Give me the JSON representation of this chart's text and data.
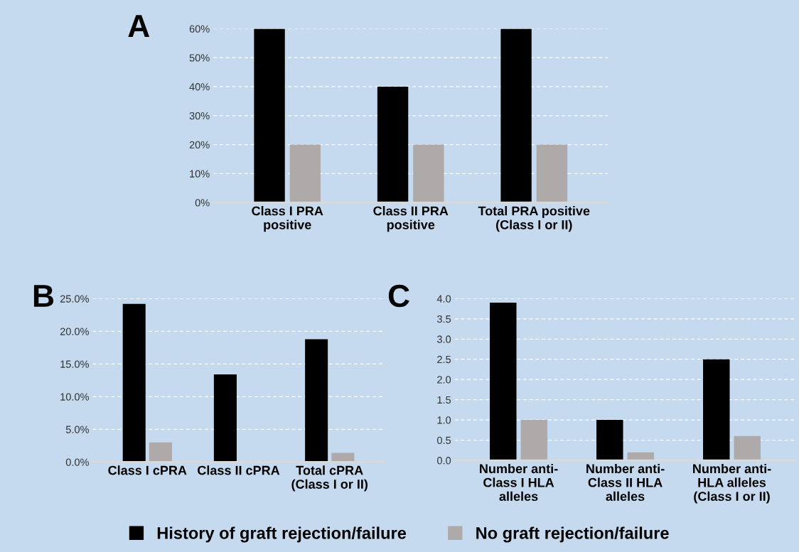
{
  "chart_data": [
    {
      "type": "bar",
      "title": "A",
      "categories": [
        "Class I PRA\npositive",
        "Class II PRA\npositive",
        "Total PRA positive\n(Class I or II)"
      ],
      "series": [
        {
          "name": "History of graft rejection/failure",
          "color": "#000000",
          "values": [
            60,
            40,
            60
          ]
        },
        {
          "name": "No graft rejection/failure",
          "color": "#aeaaaa",
          "values": [
            20,
            20,
            20
          ]
        }
      ],
      "ylim": [
        0,
        60
      ],
      "yticks": [
        {
          "value": 0,
          "label": "0%"
        },
        {
          "value": 10,
          "label": "10%"
        },
        {
          "value": 20,
          "label": "20%"
        },
        {
          "value": 30,
          "label": "30%"
        },
        {
          "value": 40,
          "label": "40%"
        },
        {
          "value": 50,
          "label": "50%"
        },
        {
          "value": 60,
          "label": "60%"
        }
      ],
      "grid": "y",
      "legend": "bottom"
    },
    {
      "type": "bar",
      "title": "B",
      "categories": [
        "Class I cPRA",
        "Class II cPRA",
        "Total cPRA\n(Class I or II)"
      ],
      "series": [
        {
          "color": "#000000",
          "values": [
            24.2,
            13.4,
            18.8
          ]
        },
        {
          "color": "#aeaaaa",
          "values": [
            3.0,
            0,
            1.4
          ]
        }
      ],
      "ylim": [
        0,
        25
      ],
      "yticks": [
        {
          "value": 0,
          "label": "0.0%"
        },
        {
          "value": 5,
          "label": "5.0%"
        },
        {
          "value": 10,
          "label": "10.0%"
        },
        {
          "value": 15,
          "label": "15.0%"
        },
        {
          "value": 20,
          "label": "20.0%"
        },
        {
          "value": 25,
          "label": "25.0%"
        }
      ],
      "grid": "y"
    },
    {
      "type": "bar",
      "title": "C",
      "categories": [
        "Number anti-\nClass I HLA\nalleles",
        "Number anti-\nClass II HLA\nalleles",
        "Number anti-\nHLA alleles\n(Class I or II)"
      ],
      "series": [
        {
          "color": "#000000",
          "values": [
            3.9,
            1.0,
            2.5
          ]
        },
        {
          "color": "#aeaaaa",
          "values": [
            1.0,
            0.2,
            0.6
          ]
        }
      ],
      "ylim": [
        0,
        4
      ],
      "yticks": [
        {
          "value": 0,
          "label": "0.0"
        },
        {
          "value": 0.5,
          "label": "0.5"
        },
        {
          "value": 1,
          "label": "1.0"
        },
        {
          "value": 1.5,
          "label": "1.5"
        },
        {
          "value": 2,
          "label": "2.0"
        },
        {
          "value": 2.5,
          "label": "2.5"
        },
        {
          "value": 3,
          "label": "3.0"
        },
        {
          "value": 3.5,
          "label": "3.5"
        },
        {
          "value": 4,
          "label": "4.0"
        }
      ],
      "grid": "y"
    }
  ]
}
